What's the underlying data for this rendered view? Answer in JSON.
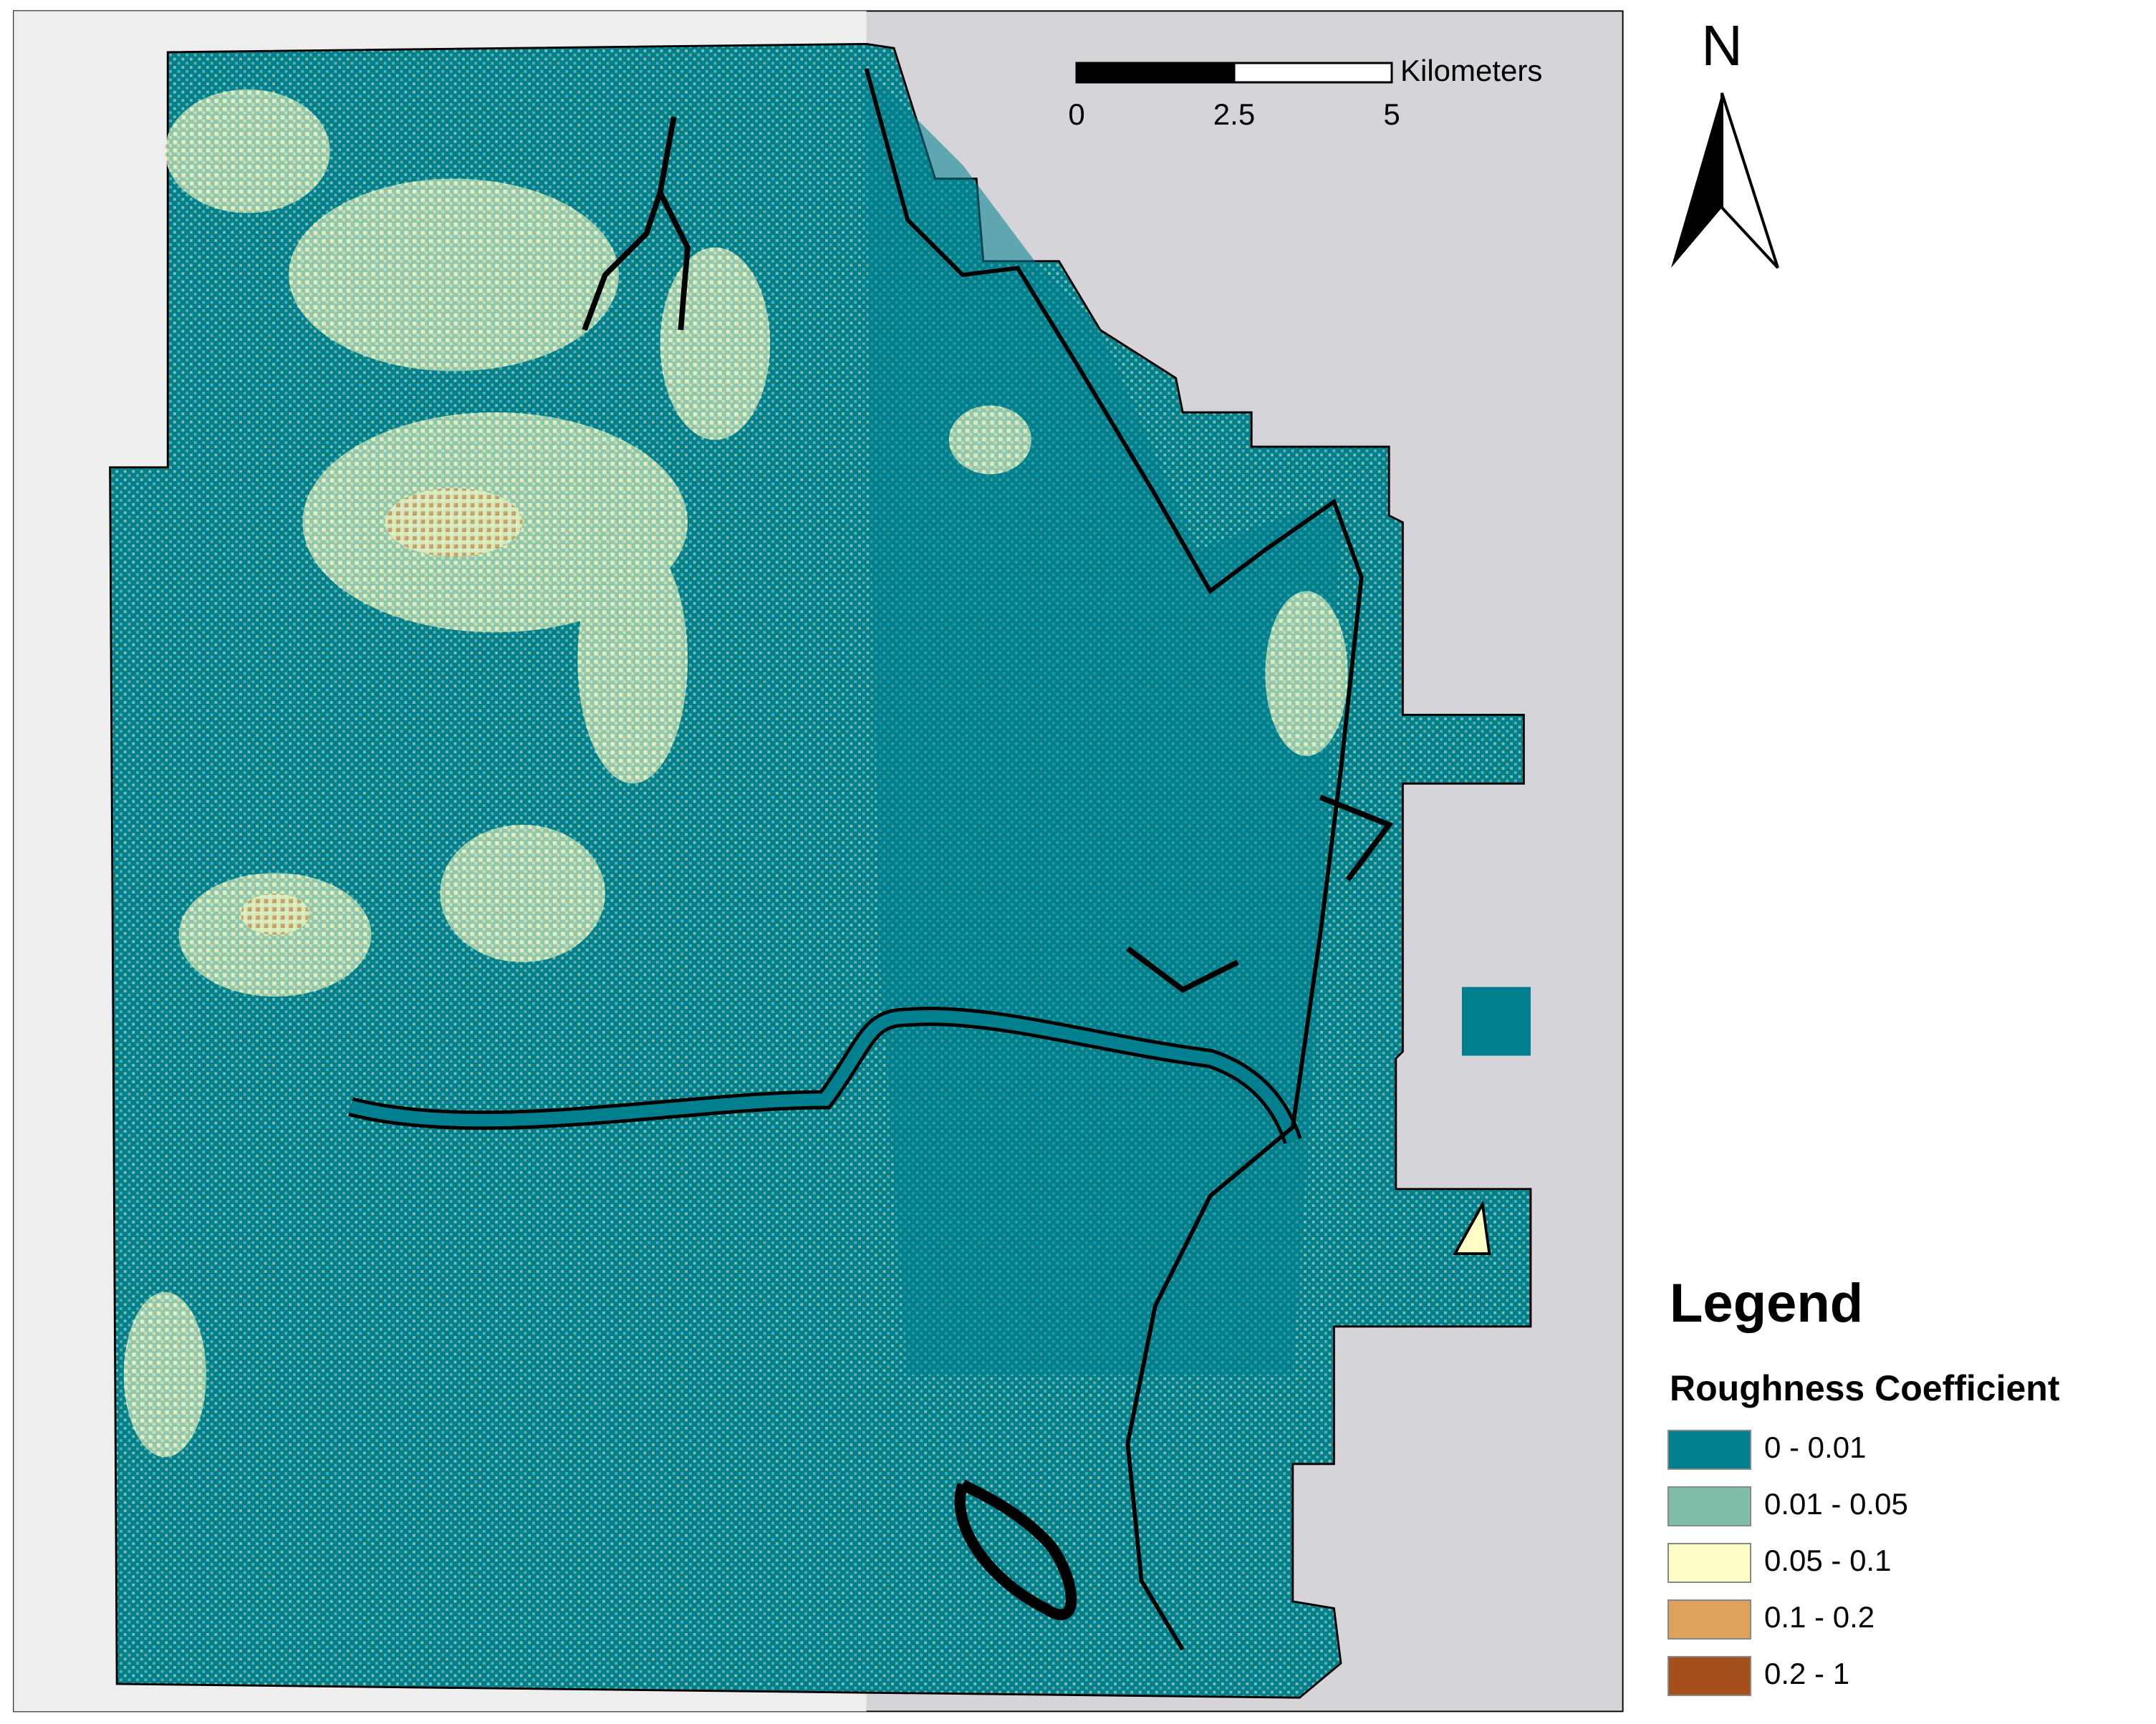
{
  "scale_bar": {
    "unit": "Kilometers",
    "ticks": [
      0,
      2.5,
      5
    ]
  },
  "north_arrow": {
    "label": "N"
  },
  "legend": {
    "title": "Legend",
    "subtitle": "Roughness Coefficient",
    "items": [
      {
        "label": "0 - 0.01",
        "color": "#00808f"
      },
      {
        "label": "0.01 - 0.05",
        "color": "#7fbfa8"
      },
      {
        "label": "0.05 - 0.1",
        "color": "#fcfcc4"
      },
      {
        "label": "0.1 - 0.2",
        "color": "#e0a15c"
      },
      {
        "label": "0.2 - 1",
        "color": "#a5501a"
      }
    ]
  }
}
